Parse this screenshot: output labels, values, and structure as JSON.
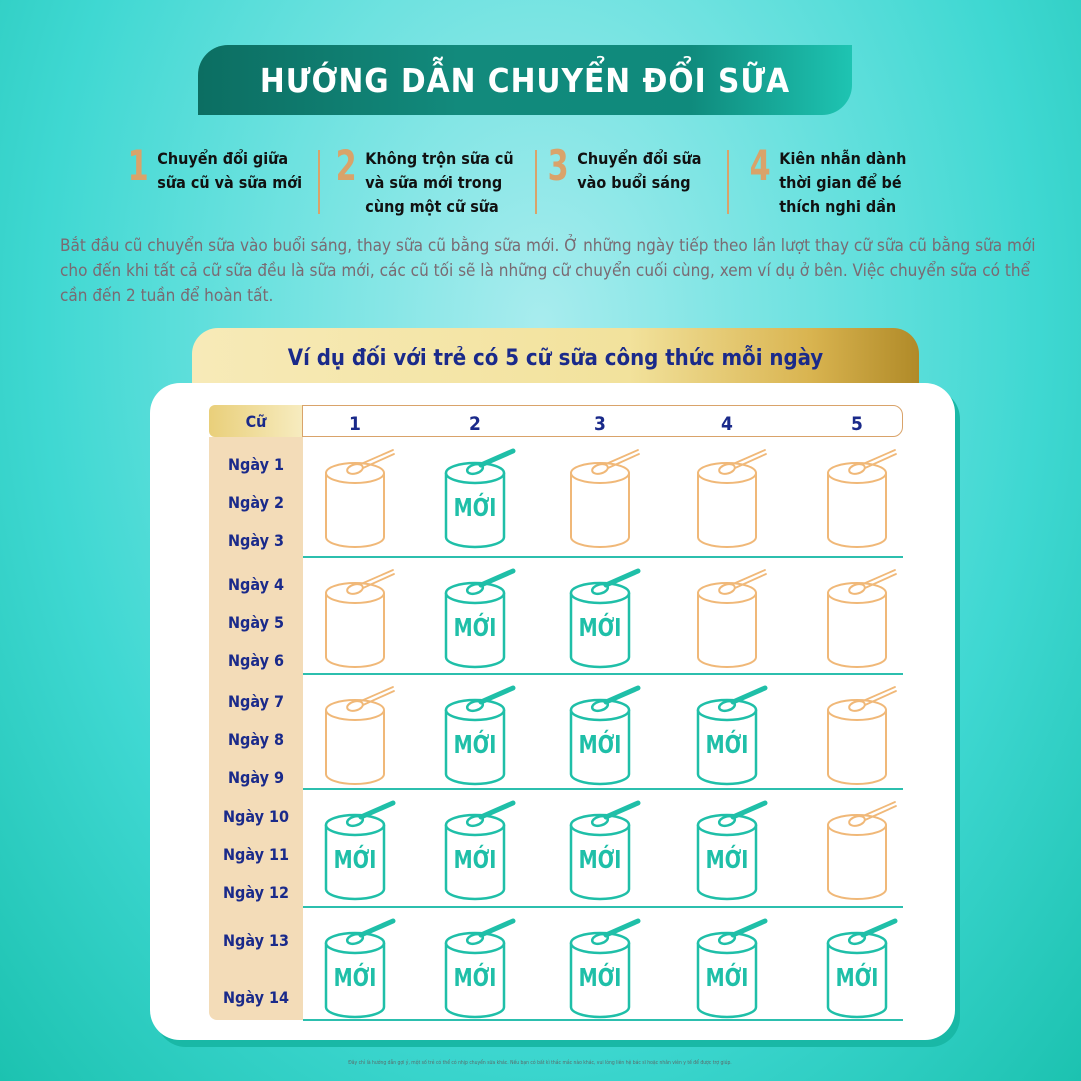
{
  "title": "HƯỚNG DẪN CHUYỂN ĐỔI SỮA",
  "steps": [
    {
      "num": "1",
      "text": "Chuyển đổi giữa\nsữa cũ và sữa mới"
    },
    {
      "num": "2",
      "text": "Không trộn sữa cũ\nvà sữa mới trong\ncùng một cữ sữa"
    },
    {
      "num": "3",
      "text": "Chuyển đổi sữa\nvào buổi sáng"
    },
    {
      "num": "4",
      "text": "Kiên nhẫn dành\nthời gian để bé\nthích nghi dần"
    }
  ],
  "intro": "Bắt đầu cũ chuyển sữa vào buổi sáng, thay sữa cũ bằng sữa mới. Ở những ngày tiếp theo lần lượt thay cữ sữa cũ bằng sữa mới cho đến khi tất cả cữ sữa đều là sữa mới, các cũ tối sẽ là những cữ chuyển cuối cùng, xem ví dụ ở bên. Việc chuyển sữa có thể cần đến 2 tuần để hoàn tất.",
  "example_title": "Ví dụ đối với trẻ có 5 cữ sữa công thức mỗi ngày",
  "table": {
    "corner": "Cữ",
    "columns": [
      "1",
      "2",
      "3",
      "4",
      "5"
    ],
    "new_label": "MỚI",
    "groups": [
      {
        "days": [
          "Ngày 1",
          "Ngày 2",
          "Ngày 3"
        ],
        "new": [
          false,
          true,
          false,
          false,
          false
        ]
      },
      {
        "days": [
          "Ngày 4",
          "Ngày 5",
          "Ngày 6"
        ],
        "new": [
          false,
          true,
          true,
          false,
          false
        ]
      },
      {
        "days": [
          "Ngày 7",
          "Ngày 8",
          "Ngày 9"
        ],
        "new": [
          false,
          true,
          true,
          true,
          false
        ]
      },
      {
        "days": [
          "Ngày 10",
          "Ngày 11",
          "Ngày 12"
        ],
        "new": [
          true,
          true,
          true,
          true,
          false
        ]
      },
      {
        "days": [
          "Ngày 13",
          "Ngày 14"
        ],
        "new": [
          true,
          true,
          true,
          true,
          true
        ]
      }
    ]
  },
  "colors": {
    "old": "#f0b878",
    "new": "#1fbfa8",
    "navy": "#1a2a8a",
    "gold": "#d9a36a"
  },
  "footer": "Đây chỉ là hướng dẫn gợi ý, một số trẻ có thể có nhịp chuyển sữa khác. Nếu bạn có bất kì thắc mắc nào khác, vui lòng liên hệ bác sĩ hoặc nhân viên y tế để được trợ giúp."
}
